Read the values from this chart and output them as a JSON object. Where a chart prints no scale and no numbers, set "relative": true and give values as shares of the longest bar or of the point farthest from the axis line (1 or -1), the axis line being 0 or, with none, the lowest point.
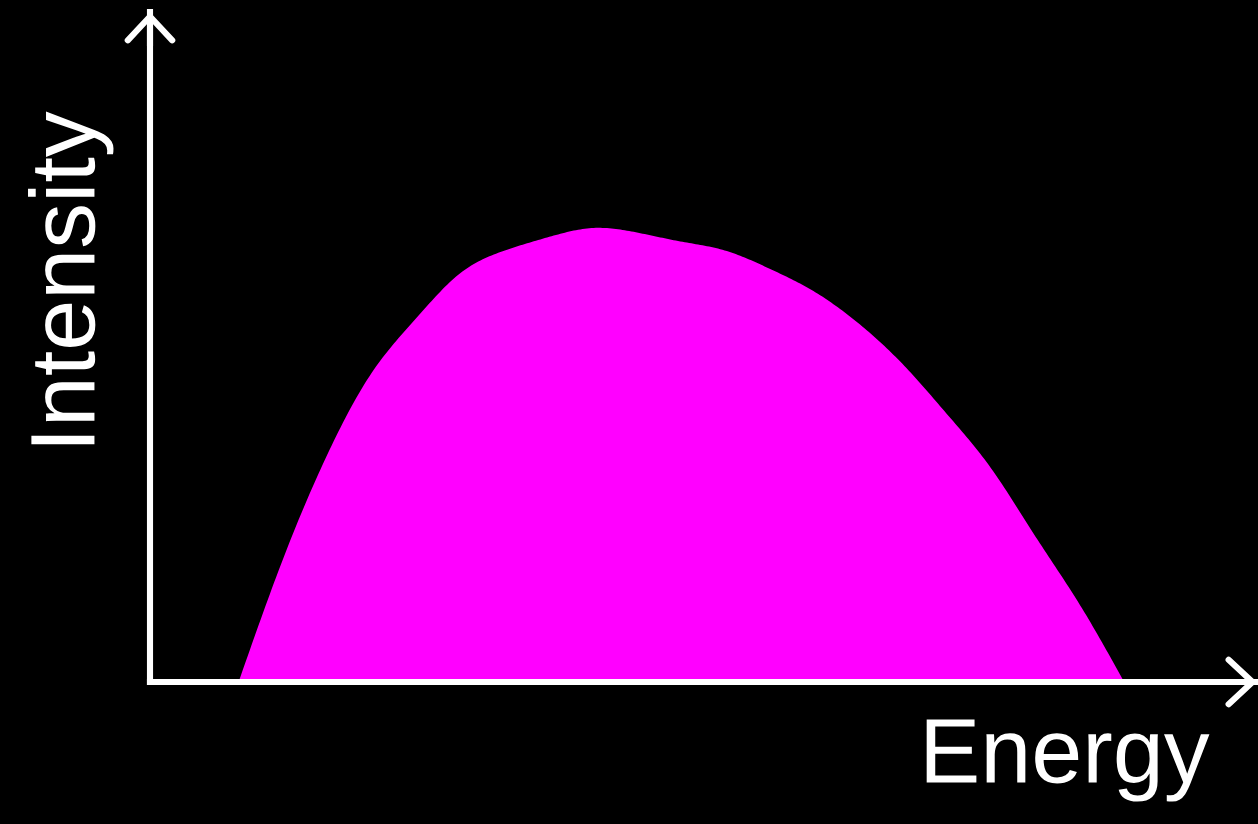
{
  "chart_data": {
    "type": "area",
    "relative": true,
    "xlabel": "Energy",
    "ylabel": "Intensity",
    "color": "#ff00ff",
    "categories": [
      null,
      null,
      null,
      null,
      null,
      null,
      null,
      null,
      null,
      null,
      null,
      null,
      null,
      null,
      null,
      null,
      null,
      null,
      null,
      null,
      null,
      null,
      null,
      null,
      null,
      null
    ],
    "values": [
      null,
      null,
      0,
      0.27,
      0.5,
      0.68,
      0.8,
      0.9,
      0.95,
      0.98,
      1,
      0.99,
      0.97,
      0.95,
      0.91,
      0.86,
      0.79,
      0.7,
      0.59,
      0.47,
      0.32,
      0.17,
      0,
      null,
      null,
      null
    ]
  }
}
